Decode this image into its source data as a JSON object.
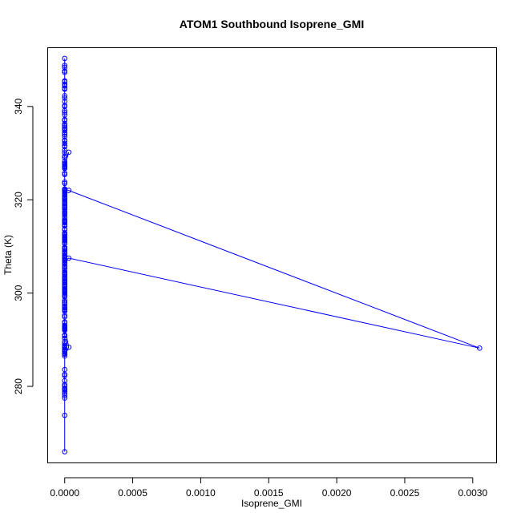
{
  "chart_data": {
    "type": "line",
    "title": "ATOM1 Southbound Isoprene_GMI",
    "xlabel": "Isoprene_GMI",
    "ylabel": "Theta (K)",
    "xlim": [
      -0.000125,
      0.003175
    ],
    "ylim": [
      263.6,
      352.6
    ],
    "x_ticks": [
      0,
      0.0005,
      0.001,
      0.0015,
      0.002,
      0.0025,
      0.003
    ],
    "x_tick_labels": [
      "0.0000",
      "0.0005",
      "0.0010",
      "0.0015",
      "0.0020",
      "0.0025",
      "0.0030"
    ],
    "y_ticks": [
      280,
      300,
      320,
      340
    ],
    "y_tick_labels": [
      "280",
      "300",
      "320",
      "340"
    ],
    "grid": false,
    "legend": "none",
    "series": [
      {
        "color": "#0000ff",
        "marker": "open-circle",
        "line": true,
        "x": [
          0.0,
          0.0,
          0.0,
          0.0,
          0.0,
          0.0,
          0.0,
          0.0,
          0.0,
          0.0,
          0.0,
          0.0,
          0.0,
          0.0,
          0.0,
          0.0,
          0.0,
          0.0,
          0.0,
          0.0,
          0.0,
          0.0,
          0.0,
          0.0,
          0.0,
          0.0,
          0.0,
          0.0,
          0.0,
          0.0,
          0.0,
          0.0,
          0.0,
          0.0,
          0.0,
          0.0,
          0.0,
          0.0,
          0.0,
          0.0,
          0.0,
          0.0,
          0.0,
          0.0,
          0.0,
          0.0,
          0.0,
          0.0,
          0.0,
          0.0,
          0.0,
          0.0,
          0.0,
          0.0,
          0.0,
          0.0,
          0.0,
          0.0,
          0.0,
          0.0,
          0.0,
          0.0,
          0.0,
          0.0,
          0.0,
          0.0,
          0.0,
          0.0,
          0.0,
          0.0,
          0.0,
          0.0,
          0.0,
          0.0,
          0.0,
          0.0,
          0.0,
          0.0,
          0.0,
          0.0,
          0.0,
          0.0,
          0.0,
          0.0,
          0.0,
          0.0,
          0.0,
          0.0,
          0.0,
          0.0,
          0.0,
          0.0,
          0.0,
          0.0,
          0.0,
          0.0,
          0.0,
          0.0,
          0.0,
          0.0,
          0.0,
          0.0,
          0.0,
          0.0,
          0.0,
          0.0,
          0.0,
          0.0,
          0.0,
          0.0,
          0.0,
          0.0,
          0.0,
          0.0,
          0.0,
          0.0,
          0.0,
          0.0,
          0.0,
          0.0,
          0.0,
          0.0,
          0.0,
          0.0,
          0.0,
          0.0,
          0.0,
          0.0,
          0.0,
          0.0,
          0.0,
          0.0,
          0.0,
          0.0,
          0.0,
          0.0,
          0.0,
          0.0,
          0.0,
          0.0,
          0.0,
          0.0,
          0.0,
          0.0,
          0.0,
          0.0,
          0.0,
          0.0,
          0.0,
          3e-05,
          0.0,
          0.0,
          0.0,
          0.0,
          0.0,
          0.0,
          0.0,
          0.0,
          0.0,
          0.0,
          0.0,
          3e-05,
          0.0,
          0.0,
          0.0,
          0.0,
          0.0,
          0.0,
          0.0,
          0.0,
          0.0,
          0.0,
          0.0,
          0.0,
          0.0,
          0.0,
          0.0,
          0.0,
          0.0,
          0.0,
          3e-05,
          0.00305,
          3e-05,
          0.0,
          0.0,
          0.0,
          0.0,
          0.0,
          0.0,
          0.0,
          0.0,
          0.0,
          0.0,
          0.0,
          0.0,
          0.0,
          0.0,
          0.0,
          0.0,
          0.0,
          0.0,
          0.0,
          0.0,
          0.0,
          0.0
        ],
        "y": [
          266.0,
          273.8,
          277.5,
          278.5,
          279.4,
          280.1,
          287.1,
          287.9,
          288.3,
          288.6,
          291.0,
          292.0,
          292.5,
          292.8,
          293.1,
          295.2,
          296.5,
          297.2,
          298.5,
          299.4,
          300.0,
          300.5,
          300.9,
          301.5,
          301.9,
          302.8,
          303.5,
          304.1,
          305.2,
          306.3,
          307.0,
          307.5,
          307.9,
          308.5,
          309.2,
          310.6,
          311.4,
          311.8,
          312.6,
          313.8,
          314.4,
          315.2,
          315.6,
          316.3,
          317.3,
          318.0,
          318.6,
          319.3,
          319.9,
          320.4,
          321.0,
          321.6,
          322.3,
          325.7,
          326.7,
          327.3,
          328.2,
          329.4,
          330.6,
          331.4,
          332.1,
          332.6,
          333.6,
          334.4,
          334.9,
          335.4,
          335.8,
          336.3,
          337.2,
          338.2,
          339.1,
          340.2,
          341.1,
          341.8,
          343.7,
          344.4,
          344.8,
          345.5,
          347.3,
          348.4,
          350.3,
          348.8,
          347.6,
          345.3,
          343.9,
          342.3,
          340.0,
          338.7,
          337.0,
          335.9,
          335.1,
          334.0,
          332.8,
          331.6,
          330.1,
          329.0,
          327.8,
          326.9,
          323.5,
          322.0,
          321.3,
          320.2,
          319.5,
          318.3,
          317.5,
          316.8,
          315.4,
          314.7,
          313.6,
          312.4,
          311.6,
          310.9,
          309.6,
          308.8,
          308.1,
          307.6,
          307.2,
          306.6,
          305.5,
          304.4,
          303.2,
          302.2,
          301.3,
          300.7,
          300.2,
          299.7,
          298.1,
          296.9,
          296.1,
          294.9,
          293.6,
          292.9,
          292.2,
          290.8,
          289.6,
          288.4,
          288.0,
          287.4,
          286.9,
          283.6,
          282.3,
          281.2,
          280.4,
          279.6,
          278.9,
          278.0,
          279.2,
          282.6,
          286.5,
          288.4,
          292.6,
          296.8,
          300.4,
          303.9,
          307.5,
          311.2,
          314.6,
          318.5,
          321.2,
          325.4,
          327.6,
          330.2,
          327.1,
          323.8,
          320.6,
          316.2,
          312.9,
          309.5,
          306.4,
          303.1,
          300.6,
          298.0,
          302.4,
          305.8,
          308.7,
          312.1,
          315.7,
          319.2,
          321.8,
          322.3,
          322.0,
          288.2,
          307.5,
          306.9,
          304.7,
          301.8,
          299.2,
          296.3,
          292.4,
          289.1,
          287.6,
          288.7,
          290.3,
          293.8,
          297.6,
          300.9,
          304.2,
          308.0,
          311.9,
          315.1,
          318.9,
          322.1,
          317.0,
          309.8,
          302.5
        ]
      }
    ]
  }
}
